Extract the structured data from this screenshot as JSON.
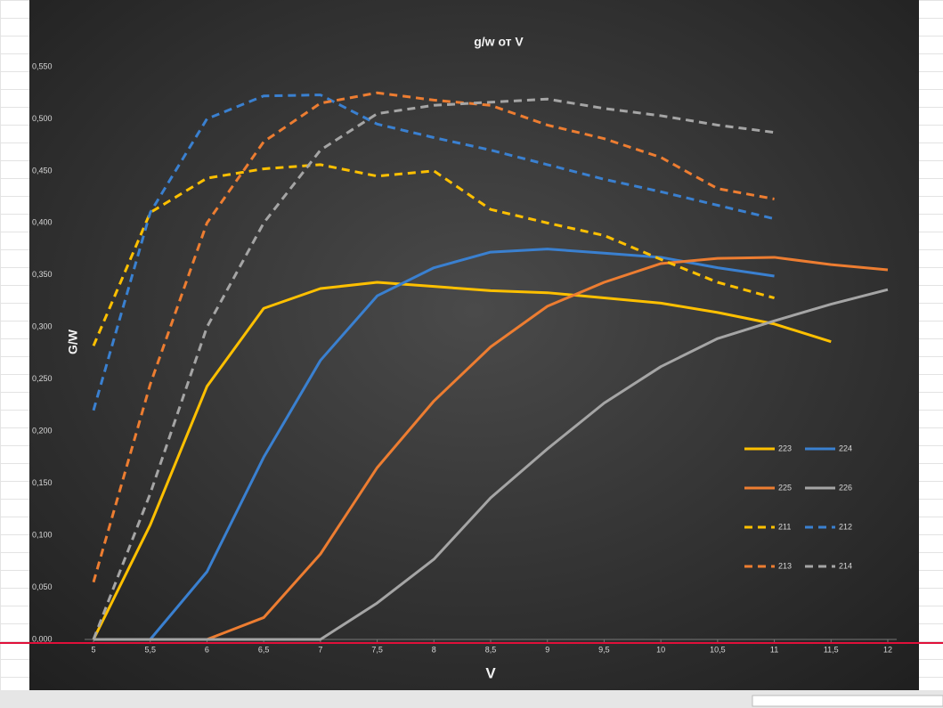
{
  "chart_data": {
    "type": "line",
    "title": "g/w от V",
    "xlabel": "V",
    "ylabel": "G/W",
    "x": [
      5,
      5.5,
      6,
      6.5,
      7,
      7.5,
      8,
      8.5,
      9,
      9.5,
      10,
      10.5,
      11,
      11.5,
      12
    ],
    "xlim": [
      5,
      12
    ],
    "xticks": [
      5,
      {
        "value": 5.5,
        "label": "5,5"
      },
      6,
      {
        "value": 6.5,
        "label": "6,5"
      },
      7,
      {
        "value": 7.5,
        "label": "7,5"
      },
      8,
      {
        "value": 8.5,
        "label": "8,5"
      },
      9,
      {
        "value": 9.5,
        "label": "9,5"
      },
      10,
      {
        "value": 10.5,
        "label": "10,5"
      },
      11,
      {
        "value": 11.5,
        "label": "11,5"
      },
      12
    ],
    "ylim": [
      0,
      0.55
    ],
    "yticks": [
      {
        "value": 0,
        "label": "0,000"
      },
      {
        "value": 0.05,
        "label": "0,050"
      },
      {
        "value": 0.1,
        "label": "0,100"
      },
      {
        "value": 0.15,
        "label": "0,150"
      },
      {
        "value": 0.2,
        "label": "0,200"
      },
      {
        "value": 0.25,
        "label": "0,250"
      },
      {
        "value": 0.3,
        "label": "0,300"
      },
      {
        "value": 0.35,
        "label": "0,350"
      },
      {
        "value": 0.4,
        "label": "0,400"
      },
      {
        "value": 0.45,
        "label": "0,450"
      },
      {
        "value": 0.5,
        "label": "0,500"
      },
      {
        "value": 0.55,
        "label": "0,550"
      }
    ],
    "series": [
      {
        "name": "223",
        "color": "#ffc000",
        "dash": false,
        "values": [
          0,
          0.11,
          0.243,
          0.318,
          0.337,
          0.343,
          0.339,
          0.335,
          0.333,
          0.328,
          0.323,
          0.314,
          0.303,
          0.286,
          null
        ]
      },
      {
        "name": "224",
        "color": "#3a80d0",
        "dash": false,
        "values": [
          0,
          0,
          0.065,
          0.175,
          0.268,
          0.33,
          0.357,
          0.372,
          0.375,
          0.371,
          0.367,
          0.357,
          0.349,
          null,
          null
        ]
      },
      {
        "name": "225",
        "color": "#ed7d31",
        "dash": false,
        "values": [
          0,
          0,
          0,
          0.021,
          0.082,
          0.165,
          0.229,
          0.281,
          0.32,
          0.343,
          0.361,
          0.366,
          0.367,
          0.36,
          0.355
        ]
      },
      {
        "name": "226",
        "color": "#a5a5a5",
        "dash": false,
        "values": [
          0,
          0,
          0,
          0,
          0,
          0.035,
          0.077,
          0.136,
          0.183,
          0.227,
          0.262,
          0.289,
          0.306,
          0.322,
          0.336
        ]
      },
      {
        "name": "211",
        "color": "#ffc000",
        "dash": true,
        "values": [
          0.282,
          0.41,
          0.443,
          0.452,
          0.456,
          0.445,
          0.45,
          0.413,
          0.4,
          0.388,
          0.365,
          0.343,
          0.328,
          null,
          null
        ]
      },
      {
        "name": "212",
        "color": "#3a80d0",
        "dash": true,
        "values": [
          0.22,
          0.41,
          0.5,
          0.522,
          0.523,
          0.495,
          0.482,
          0.47,
          0.456,
          0.442,
          0.43,
          0.417,
          0.404,
          null,
          null
        ]
      },
      {
        "name": "213",
        "color": "#ed7d31",
        "dash": true,
        "values": [
          0.055,
          0.245,
          0.4,
          0.478,
          0.515,
          0.525,
          0.518,
          0.513,
          0.494,
          0.481,
          0.463,
          0.433,
          0.423,
          null,
          null
        ]
      },
      {
        "name": "214",
        "color": "#a5a5a5",
        "dash": true,
        "values": [
          0,
          0.14,
          0.3,
          0.4,
          0.47,
          0.505,
          0.513,
          0.516,
          0.519,
          0.51,
          0.503,
          0.494,
          0.487,
          null,
          null
        ]
      }
    ]
  }
}
